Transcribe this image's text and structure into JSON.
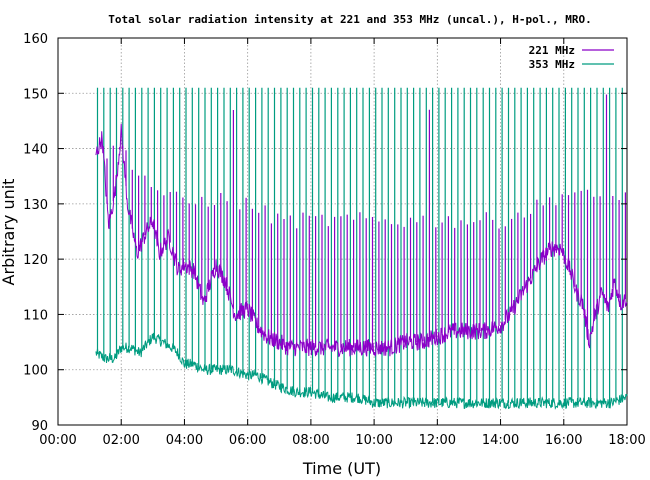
{
  "chart_data": {
    "type": "line",
    "title": "Total solar radiation intensity at 221 and 353 MHz (uncal.), H-pol., MRO.",
    "xlabel": "Time (UT)",
    "ylabel": "Arbitrary unit",
    "xlim": [
      0,
      18
    ],
    "ylim": [
      90,
      160
    ],
    "x_ticks": [
      "00:00",
      "02:00",
      "04:00",
      "06:00",
      "08:00",
      "10:00",
      "12:00",
      "14:00",
      "16:00",
      "18:00"
    ],
    "y_ticks": [
      "90",
      "100",
      "110",
      "120",
      "130",
      "140",
      "150",
      "160"
    ],
    "grid": true,
    "legend_position": "top-right",
    "series": [
      {
        "name": "221 MHz",
        "color": "#8b00c8",
        "x": [
          1.2,
          1.4,
          1.6,
          1.8,
          2.0,
          2.2,
          2.5,
          2.8,
          3.0,
          3.2,
          3.5,
          3.8,
          4.0,
          4.3,
          4.6,
          5.0,
          5.3,
          5.6,
          6.0,
          6.3,
          6.6,
          7.0,
          7.3,
          7.6,
          8.0,
          8.5,
          9.0,
          9.5,
          10.0,
          10.5,
          11.0,
          11.5,
          12.0,
          12.5,
          13.0,
          13.5,
          14.0,
          14.3,
          14.6,
          15.0,
          15.3,
          15.6,
          15.9,
          16.2,
          16.4,
          16.6,
          16.8,
          17.0,
          17.2,
          17.4,
          17.6,
          17.8,
          18.0
        ],
        "values": [
          139,
          142,
          126,
          132,
          143,
          130,
          121,
          125,
          127,
          121,
          124,
          118,
          119,
          118,
          112,
          119,
          116,
          110,
          111,
          108,
          106,
          105,
          104,
          104,
          104,
          104,
          104,
          104,
          104,
          104,
          105,
          105,
          106,
          107,
          107,
          107,
          108,
          110,
          113,
          117,
          120,
          122,
          122,
          118,
          114,
          112,
          105,
          110,
          114,
          111,
          116,
          112,
          113
        ],
        "spikes": {
          "every_h": 0.2,
          "from": 1.35,
          "to": 17.95,
          "peaks": [
            [
              1.2,
              139
            ],
            [
              2.0,
              140
            ],
            [
              3.0,
              133
            ],
            [
              4.0,
              130
            ],
            [
              5.0,
              131
            ],
            [
              6.0,
              130
            ],
            [
              7.0,
              127
            ],
            [
              8.0,
              127
            ],
            [
              10.0,
              127
            ],
            [
              12.0,
              127
            ],
            [
              14.0,
              127
            ],
            [
              15.0,
              129
            ],
            [
              16.0,
              132
            ],
            [
              17.0,
              131
            ],
            [
              18.0,
              131
            ]
          ],
          "big": [
            [
              5.6,
              146
            ],
            [
              6.9,
              151
            ],
            [
              11.7,
              148
            ],
            [
              17.3,
              151
            ]
          ]
        }
      },
      {
        "name": "353 MHz",
        "color": "#009c80",
        "x": [
          1.2,
          1.5,
          1.8,
          2.0,
          2.3,
          2.6,
          3.0,
          3.3,
          3.6,
          3.8,
          4.0,
          4.3,
          4.6,
          5.0,
          5.5,
          6.0,
          6.3,
          6.6,
          7.0,
          7.5,
          8.0,
          8.5,
          9.0,
          9.5,
          10.0,
          10.5,
          11.0,
          11.5,
          12.0,
          12.5,
          13.0,
          13.5,
          14.0,
          14.5,
          15.0,
          15.5,
          16.0,
          16.5,
          17.0,
          17.5,
          18.0
        ],
        "values": [
          103,
          102,
          102,
          104,
          104,
          103,
          106,
          105,
          104,
          103,
          101,
          101,
          100,
          100,
          100,
          99,
          99,
          98,
          97,
          96,
          96,
          95,
          95,
          95,
          94,
          94,
          94,
          94,
          94,
          94,
          94,
          94,
          94,
          94,
          94,
          94,
          94,
          94,
          94,
          94,
          95
        ],
        "spikes": {
          "every_h": 0.2,
          "from": 1.25,
          "to": 17.9,
          "peaks": [
            [
              1.2,
              151
            ],
            [
              18.0,
              151
            ]
          ]
        }
      }
    ]
  }
}
